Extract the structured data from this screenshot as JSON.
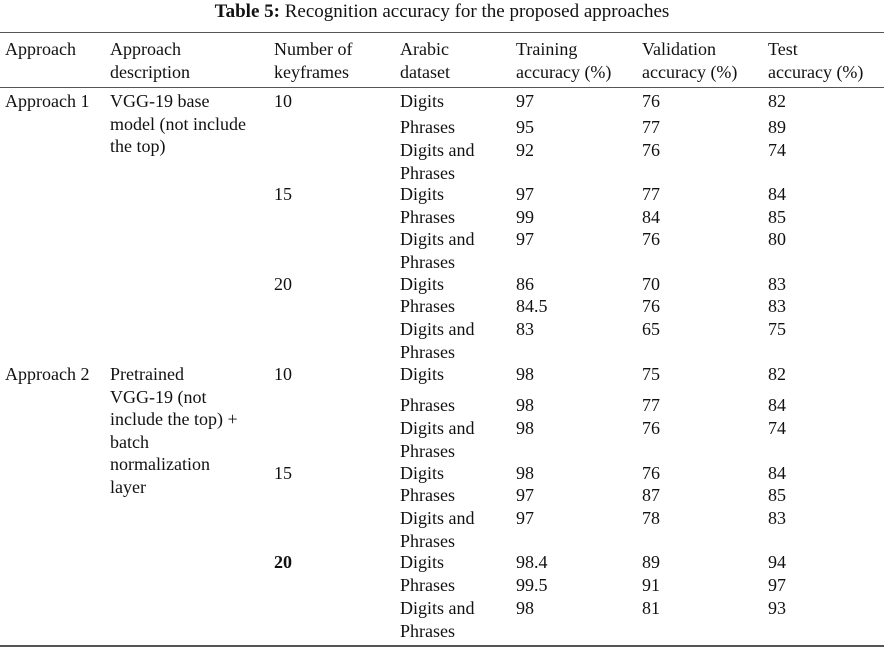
{
  "table": {
    "caption": {
      "label": "Table 5:",
      "text": "Recognition accuracy for the proposed approaches"
    },
    "headers": [
      [
        "Approach"
      ],
      [
        "Approach",
        "description"
      ],
      [
        "Number of",
        "keyframes"
      ],
      [
        "Arabic",
        "dataset"
      ],
      [
        "Training",
        "accuracy (%)"
      ],
      [
        "Validation",
        "accuracy (%)"
      ],
      [
        "Test",
        "accuracy (%)"
      ]
    ],
    "approaches": [
      {
        "name": "Approach 1",
        "description": [
          "VGG-19 base",
          "model (not include",
          "the top)"
        ],
        "groups": [
          {
            "keyframes": 10,
            "bold": false,
            "rows": [
              {
                "dataset": "Digits",
                "training": 97,
                "validation": 76,
                "test": 82
              },
              {
                "dataset": "Phrases",
                "training": 95,
                "validation": 77,
                "test": 89
              },
              {
                "dataset": "Digits and Phrases",
                "training": 92,
                "validation": 76,
                "test": 74
              }
            ]
          },
          {
            "keyframes": 15,
            "bold": false,
            "rows": [
              {
                "dataset": "Digits",
                "training": 97,
                "validation": 77,
                "test": 84
              },
              {
                "dataset": "Phrases",
                "training": 99,
                "validation": 84,
                "test": 85
              },
              {
                "dataset": "Digits and Phrases",
                "training": 97,
                "validation": 76,
                "test": 80
              }
            ]
          },
          {
            "keyframes": 20,
            "bold": false,
            "rows": [
              {
                "dataset": "Digits",
                "training": 86,
                "validation": 70,
                "test": 83
              },
              {
                "dataset": "Phrases",
                "training": 84.5,
                "validation": 76,
                "test": 83
              },
              {
                "dataset": "Digits and Phrases",
                "training": 83,
                "validation": 65,
                "test": 75
              }
            ]
          }
        ]
      },
      {
        "name": "Approach 2",
        "description": [
          "Pretrained",
          "VGG-19 (not",
          "include the top) +",
          "batch",
          "normalization",
          "layer"
        ],
        "groups": [
          {
            "keyframes": 10,
            "bold": false,
            "rows": [
              {
                "dataset": "Digits",
                "training": 98,
                "validation": 75,
                "test": 82
              },
              {
                "dataset": "Phrases",
                "training": 98,
                "validation": 77,
                "test": 84
              },
              {
                "dataset": "Digits and Phrases",
                "training": 98,
                "validation": 76,
                "test": 74
              }
            ]
          },
          {
            "keyframes": 15,
            "bold": false,
            "rows": [
              {
                "dataset": "Digits",
                "training": 98,
                "validation": 76,
                "test": 84
              },
              {
                "dataset": "Phrases",
                "training": 97,
                "validation": 87,
                "test": 85
              },
              {
                "dataset": "Digits and Phrases",
                "training": 97,
                "validation": 78,
                "test": 83
              }
            ]
          },
          {
            "keyframes": 20,
            "bold": true,
            "rows": [
              {
                "dataset": "Digits",
                "training": 98.4,
                "validation": 89,
                "test": 94
              },
              {
                "dataset": "Phrases",
                "training": 99.5,
                "validation": 91,
                "test": 97
              },
              {
                "dataset": "Digits and Phrases",
                "training": 98,
                "validation": 81,
                "test": 93
              }
            ]
          }
        ]
      }
    ]
  }
}
